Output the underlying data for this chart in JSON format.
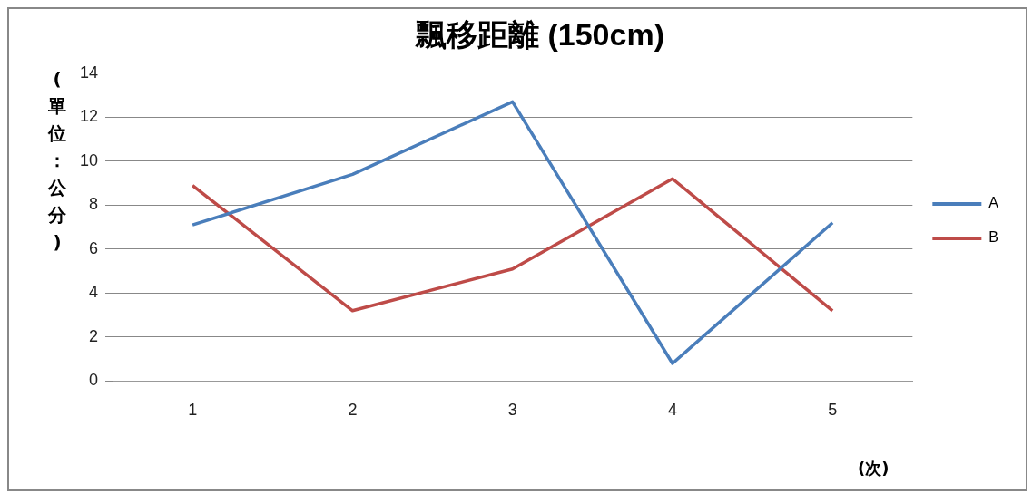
{
  "chart_data": {
    "type": "line",
    "title": "飄移距離 (150cm)",
    "ylabel": "(單位：公分)",
    "xlabel": "(次)",
    "categories": [
      "1",
      "2",
      "3",
      "4",
      "5"
    ],
    "series": [
      {
        "name": "A",
        "color": "#4a7ebb",
        "values": [
          7.1,
          9.4,
          12.7,
          0.8,
          7.2
        ]
      },
      {
        "name": "B",
        "color": "#be4b48",
        "values": [
          8.9,
          3.2,
          5.1,
          9.2,
          3.2
        ]
      }
    ],
    "ylim": [
      0,
      14
    ],
    "yticks": [
      0,
      2,
      4,
      6,
      8,
      10,
      12,
      14
    ],
    "grid": "y",
    "legend": "right",
    "marker": "none",
    "line_style": "solid"
  }
}
